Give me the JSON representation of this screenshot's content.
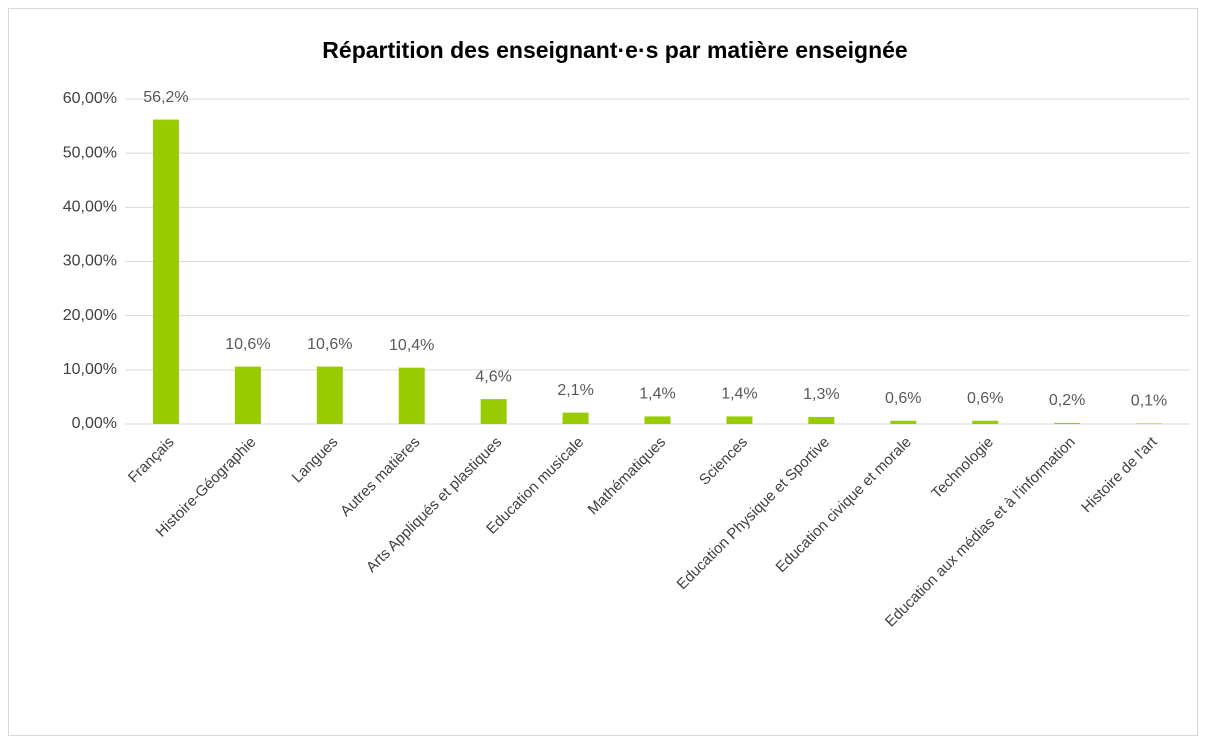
{
  "chart_data": {
    "type": "bar",
    "title": "Répartition des enseignant·e·s par matière enseignée",
    "categories": [
      "Français",
      "Histoire-Géographie",
      "Langues",
      "Autres matières",
      "Arts Appliqués et plastiques",
      "Education musicale",
      "Mathématiques",
      "Sciences",
      "Education Physique et Sportive",
      "Education civique et morale",
      "Technologie",
      "Education aux médias et à l'information",
      "Histoire de l'art"
    ],
    "values": [
      56.2,
      10.6,
      10.6,
      10.4,
      4.6,
      2.1,
      1.4,
      1.4,
      1.3,
      0.6,
      0.6,
      0.2,
      0.1
    ],
    "value_labels": [
      "56,2%",
      "10,6%",
      "10,6%",
      "10,4%",
      "4,6%",
      "2,1%",
      "1,4%",
      "1,4%",
      "1,3%",
      "0,6%",
      "0,6%",
      "0,2%",
      "0,1%"
    ],
    "color": "#99cc00",
    "ylim": [
      0,
      60
    ],
    "yticks": [
      {
        "value": 0,
        "label": "0,00%"
      },
      {
        "value": 10,
        "label": "10,00%"
      },
      {
        "value": 20,
        "label": "20,00%"
      },
      {
        "value": 30,
        "label": "30,00%"
      },
      {
        "value": 40,
        "label": "40,00%"
      },
      {
        "value": 50,
        "label": "50,00%"
      },
      {
        "value": 60,
        "label": "60,00%"
      }
    ],
    "grid": true
  }
}
